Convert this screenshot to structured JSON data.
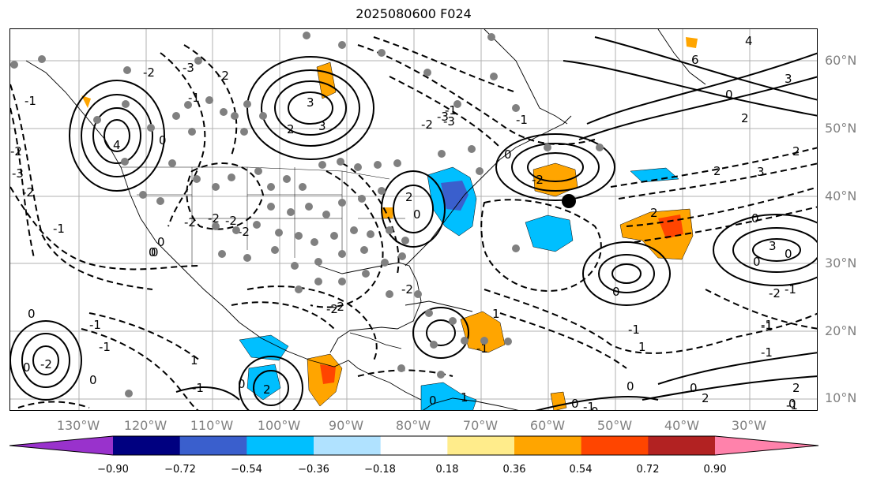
{
  "title": "2025080600 F024",
  "lat_labels": [
    "60°N",
    "50°N",
    "40°N",
    "30°N",
    "20°N",
    "10°N"
  ],
  "lon_labels": [
    "130°W",
    "120°W",
    "110°W",
    "100°W",
    "90°W",
    "80°W",
    "70°W",
    "60°W",
    "50°W",
    "40°W",
    "30°W"
  ],
  "contour_labels": [
    "-2",
    "-3",
    "-1",
    "-1",
    "-2",
    "-3",
    "-2",
    "4",
    "3",
    "3",
    "2",
    "-2",
    "-2",
    "-1",
    "0",
    "0",
    "-1",
    "-2",
    "-2",
    "0",
    "-1",
    "2",
    "0",
    "-1",
    "2",
    "3",
    "-2",
    "0",
    "-1",
    "-1",
    "0",
    "-2",
    "-1",
    "0",
    "4",
    "6",
    "3",
    "0",
    "2",
    "2",
    "-2",
    "-3",
    "-2",
    "0",
    "-2",
    "1",
    "-1",
    "0",
    "2",
    "3",
    "0",
    "2",
    "2",
    "0",
    "-2",
    "0",
    "-1",
    "0",
    "-2",
    "-1",
    "1",
    "0",
    "-1",
    "1",
    "0",
    "0",
    "1",
    "-1",
    "0",
    "-2",
    "0",
    "-3",
    "-1",
    "2",
    "1",
    "0",
    "-1",
    "0"
  ],
  "colorbar": {
    "ticks": [
      "−0.90",
      "−0.72",
      "−0.54",
      "−0.36",
      "−0.18",
      "0.18",
      "0.36",
      "0.54",
      "0.72",
      "0.90"
    ],
    "colors": {
      "under": "#9932cc",
      "bins": [
        "#000080",
        "#3a5fcd",
        "#00bfff",
        "#b0e2ff",
        "#ffffff",
        "#ffec8b",
        "#ffa500",
        "#ff4500",
        "#b22222"
      ],
      "over": "#ff82ab"
    }
  }
}
